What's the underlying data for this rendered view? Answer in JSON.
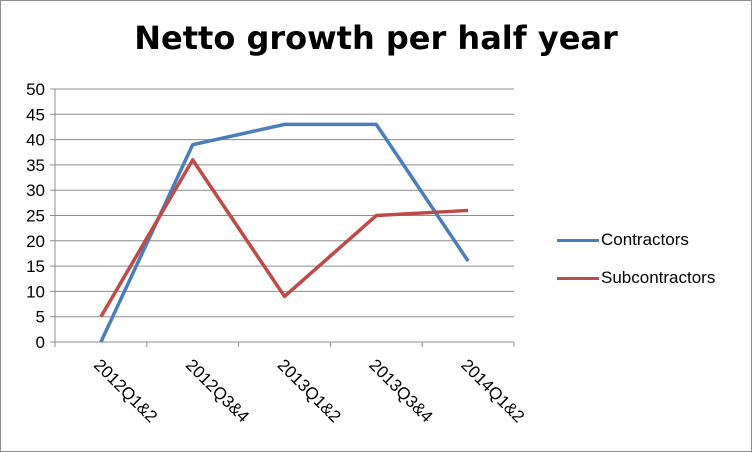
{
  "chart_data": {
    "type": "line",
    "title": "Netto growth per half year",
    "categories": [
      "2012Q1&2",
      "2012Q3&4",
      "2013Q1&2",
      "2013Q3&4",
      "2014Q1&2"
    ],
    "ylim": [
      0,
      50
    ],
    "yticks": [
      "0",
      "5",
      "10",
      "15",
      "20",
      "25",
      "30",
      "35",
      "40",
      "45",
      "50"
    ],
    "grid": true,
    "legend_position": "right",
    "series": [
      {
        "name": "Contractors",
        "color": "#4a7ebb",
        "values": [
          0,
          39,
          43,
          43,
          16
        ]
      },
      {
        "name": "Subcontractors",
        "color": "#be4b48",
        "values": [
          5,
          36,
          9,
          25,
          26
        ]
      }
    ]
  }
}
